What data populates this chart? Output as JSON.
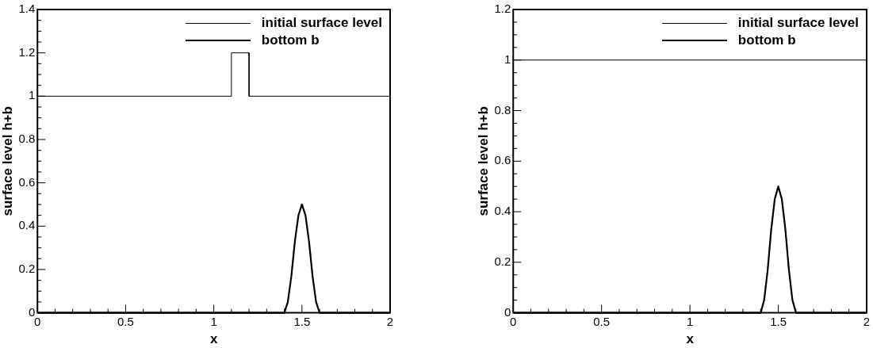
{
  "chart_data": [
    {
      "type": "line",
      "xlabel": "x",
      "ylabel": "surface level h+b",
      "legend": "top right",
      "grid": false,
      "xlim": [
        0,
        2
      ],
      "ylim": [
        0,
        1.4
      ],
      "xticks": [
        0,
        {
          "value": 0.1,
          "label": null
        },
        {
          "value": 0.2,
          "label": null
        },
        {
          "value": 0.3,
          "label": null
        },
        {
          "value": 0.4,
          "label": null
        },
        0.5,
        {
          "value": 0.6,
          "label": null
        },
        {
          "value": 0.7,
          "label": null
        },
        {
          "value": 0.8,
          "label": null
        },
        {
          "value": 0.9,
          "label": null
        },
        1,
        {
          "value": 1.1,
          "label": null
        },
        {
          "value": 1.2,
          "label": null
        },
        {
          "value": 1.3,
          "label": null
        },
        {
          "value": 1.4,
          "label": null
        },
        1.5,
        {
          "value": 1.6,
          "label": null
        },
        {
          "value": 1.7,
          "label": null
        },
        {
          "value": 1.8,
          "label": null
        },
        {
          "value": 1.9,
          "label": null
        },
        2
      ],
      "yticks": [
        0,
        {
          "value": 0.05,
          "label": null
        },
        {
          "value": 0.1,
          "label": null
        },
        {
          "value": 0.15,
          "label": null
        },
        0.2,
        {
          "value": 0.25,
          "label": null
        },
        {
          "value": 0.3,
          "label": null
        },
        {
          "value": 0.35,
          "label": null
        },
        0.4,
        {
          "value": 0.45,
          "label": null
        },
        {
          "value": 0.5,
          "label": null
        },
        {
          "value": 0.55,
          "label": null
        },
        0.6,
        {
          "value": 0.65,
          "label": null
        },
        {
          "value": 0.7,
          "label": null
        },
        {
          "value": 0.75,
          "label": null
        },
        0.8,
        {
          "value": 0.85,
          "label": null
        },
        {
          "value": 0.9,
          "label": null
        },
        {
          "value": 0.95,
          "label": null
        },
        1,
        {
          "value": 1.05,
          "label": null
        },
        {
          "value": 1.1,
          "label": null
        },
        {
          "value": 1.15,
          "label": null
        },
        1.2,
        {
          "value": 1.25,
          "label": null
        },
        {
          "value": 1.3,
          "label": null
        },
        {
          "value": 1.35,
          "label": null
        },
        1.4
      ],
      "series": [
        {
          "name": "initial surface level",
          "color": "#000000",
          "x": [
            0,
            1.1,
            1.1,
            1.2,
            1.2,
            2
          ],
          "values": [
            1,
            1,
            1.2,
            1.2,
            1,
            1
          ]
        },
        {
          "name": "bottom b",
          "color": "#000000",
          "x": [
            0,
            1.4,
            1.42,
            1.44,
            1.46,
            1.48,
            1.5,
            1.52,
            1.54,
            1.56,
            1.58,
            1.6,
            2
          ],
          "values": [
            0,
            0,
            0.05,
            0.17,
            0.33,
            0.45,
            0.5,
            0.45,
            0.33,
            0.17,
            0.05,
            0,
            0
          ]
        }
      ]
    },
    {
      "type": "line",
      "xlabel": "x",
      "ylabel": "surface level h+b",
      "legend": "top right",
      "grid": false,
      "xlim": [
        0,
        2
      ],
      "ylim": [
        0,
        1.2
      ],
      "xticks": [
        0,
        {
          "value": 0.1,
          "label": null
        },
        {
          "value": 0.2,
          "label": null
        },
        {
          "value": 0.3,
          "label": null
        },
        {
          "value": 0.4,
          "label": null
        },
        0.5,
        {
          "value": 0.6,
          "label": null
        },
        {
          "value": 0.7,
          "label": null
        },
        {
          "value": 0.8,
          "label": null
        },
        {
          "value": 0.9,
          "label": null
        },
        1,
        {
          "value": 1.1,
          "label": null
        },
        {
          "value": 1.2,
          "label": null
        },
        {
          "value": 1.3,
          "label": null
        },
        {
          "value": 1.4,
          "label": null
        },
        1.5,
        {
          "value": 1.6,
          "label": null
        },
        {
          "value": 1.7,
          "label": null
        },
        {
          "value": 1.8,
          "label": null
        },
        {
          "value": 1.9,
          "label": null
        },
        2
      ],
      "yticks": [
        0,
        {
          "value": 0.05,
          "label": null
        },
        {
          "value": 0.1,
          "label": null
        },
        {
          "value": 0.15,
          "label": null
        },
        0.2,
        {
          "value": 0.25,
          "label": null
        },
        {
          "value": 0.3,
          "label": null
        },
        {
          "value": 0.35,
          "label": null
        },
        0.4,
        {
          "value": 0.45,
          "label": null
        },
        {
          "value": 0.5,
          "label": null
        },
        {
          "value": 0.55,
          "label": null
        },
        0.6,
        {
          "value": 0.65,
          "label": null
        },
        {
          "value": 0.7,
          "label": null
        },
        {
          "value": 0.75,
          "label": null
        },
        0.8,
        {
          "value": 0.85,
          "label": null
        },
        {
          "value": 0.9,
          "label": null
        },
        {
          "value": 0.95,
          "label": null
        },
        1,
        {
          "value": 1.05,
          "label": null
        },
        {
          "value": 1.1,
          "label": null
        },
        {
          "value": 1.15,
          "label": null
        },
        1.2
      ],
      "series": [
        {
          "name": "initial surface level",
          "color": "#000000",
          "x": [
            0,
            2
          ],
          "values": [
            1,
            1
          ]
        },
        {
          "name": "bottom b",
          "color": "#000000",
          "x": [
            0,
            1.4,
            1.42,
            1.44,
            1.46,
            1.48,
            1.5,
            1.52,
            1.54,
            1.56,
            1.58,
            1.6,
            2
          ],
          "values": [
            0,
            0,
            0.05,
            0.17,
            0.33,
            0.45,
            0.5,
            0.45,
            0.33,
            0.17,
            0.05,
            0,
            0
          ]
        }
      ]
    }
  ]
}
